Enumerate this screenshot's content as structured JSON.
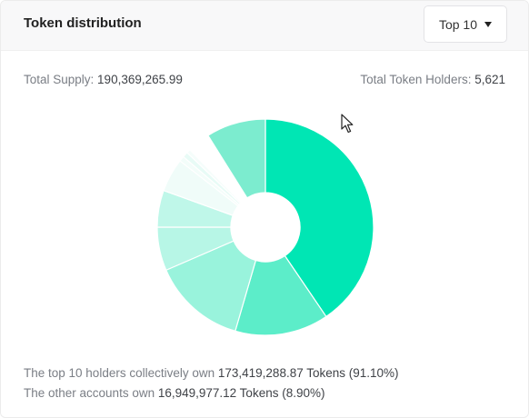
{
  "header": {
    "title": "Token distribution",
    "select_label": "Top 10"
  },
  "stats": {
    "total_supply_label": "Total Supply: ",
    "total_supply_value": "190,369,265.99",
    "holders_label": "Total Token Holders: ",
    "holders_value": "5,621"
  },
  "footer": {
    "top_prefix": "The top 10 holders collectively own ",
    "top_value": "173,419,288.87 Tokens (91.10%)",
    "other_prefix": "The other accounts own ",
    "other_value": "16,949,977.12 Tokens (8.90%)"
  },
  "chart_data": {
    "type": "pie",
    "inner_radius_ratio": 0.32,
    "slices": [
      {
        "value": 40.5,
        "color": "#00e6b4"
      },
      {
        "value": 14.0,
        "color": "#5cedc9"
      },
      {
        "value": 14.0,
        "color": "#99f3dc"
      },
      {
        "value": 6.5,
        "color": "#b7f6e6"
      },
      {
        "value": 5.5,
        "color": "#bff7e9"
      },
      {
        "value": 5.0,
        "color": "#f0fcf9"
      },
      {
        "value": 0.8,
        "color": "#f3fdfa"
      },
      {
        "value": 0.8,
        "color": "#e8fbf6"
      },
      {
        "value": 0.6,
        "color": "#f5fdfb"
      },
      {
        "value": 3.4,
        "color": "#ffffff"
      },
      {
        "value": 8.9,
        "color": "#7ceccf"
      }
    ]
  }
}
